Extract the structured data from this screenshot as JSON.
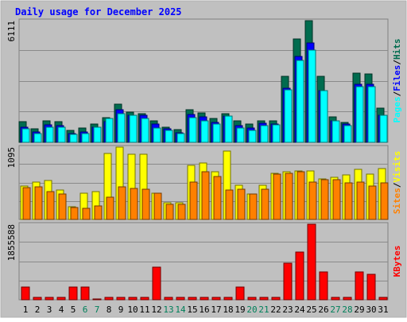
{
  "chart_data": [
    {
      "type": "bar",
      "title": "Daily usage for December 2025",
      "categories": [
        "1",
        "2",
        "3",
        "4",
        "5",
        "6",
        "7",
        "8",
        "9",
        "10",
        "11",
        "12",
        "13",
        "14",
        "15",
        "16",
        "17",
        "18",
        "19",
        "20",
        "21",
        "22",
        "23",
        "24",
        "25",
        "26",
        "27",
        "28",
        "29",
        "30",
        "31"
      ],
      "weekend_days": [
        "6",
        "7",
        "13",
        "14",
        "20",
        "21",
        "27",
        "28"
      ],
      "ylabel_parts": [
        "Pages",
        "/",
        "Files",
        "/",
        "Hits"
      ],
      "ymax_label": "6111",
      "ylim": [
        0,
        6111
      ],
      "series": [
        {
          "name": "Hits",
          "color": "#006c4f",
          "values": [
            1020,
            660,
            1060,
            1020,
            610,
            710,
            900,
            1250,
            1900,
            1520,
            1450,
            1060,
            770,
            620,
            1630,
            1490,
            1190,
            1440,
            1080,
            930,
            1070,
            1060,
            3300,
            5200,
            6111,
            3300,
            1270,
            1000,
            3490,
            3450,
            1700
          ]
        },
        {
          "name": "Files",
          "color": "#0000ff",
          "values": [
            760,
            520,
            870,
            840,
            450,
            500,
            750,
            1050,
            1630,
            1370,
            1340,
            900,
            670,
            490,
            1400,
            1270,
            1000,
            1300,
            820,
            700,
            940,
            900,
            2700,
            4300,
            5000,
            2600,
            1060,
            900,
            2900,
            2900,
            1350
          ]
        },
        {
          "name": "Pages",
          "color": "#00ffff",
          "values": [
            660,
            430,
            760,
            750,
            390,
            420,
            760,
            1180,
            1440,
            1370,
            1200,
            720,
            610,
            420,
            1240,
            1070,
            910,
            1300,
            720,
            610,
            830,
            860,
            2650,
            4100,
            4650,
            2600,
            1060,
            850,
            2800,
            2780,
            1350
          ]
        }
      ],
      "grid": true
    },
    {
      "type": "bar",
      "categories": [
        "1",
        "2",
        "3",
        "4",
        "5",
        "6",
        "7",
        "8",
        "9",
        "10",
        "11",
        "12",
        "13",
        "14",
        "15",
        "16",
        "17",
        "18",
        "19",
        "20",
        "21",
        "22",
        "23",
        "24",
        "25",
        "26",
        "27",
        "28",
        "29",
        "30",
        "31"
      ],
      "ylabel_parts": [
        "Sites",
        "/",
        "Visits"
      ],
      "ymax_label": "1095",
      "ylim": [
        0,
        1095
      ],
      "series": [
        {
          "name": "Visits",
          "color": "#ffff00",
          "values": [
            510,
            560,
            590,
            440,
            190,
            400,
            420,
            1000,
            1095,
            990,
            990,
            400,
            250,
            250,
            820,
            850,
            720,
            1030,
            520,
            380,
            520,
            700,
            720,
            740,
            730,
            610,
            640,
            670,
            760,
            690,
            770
          ]
        },
        {
          "name": "Sites",
          "color": "#ff8000",
          "values": [
            480,
            490,
            420,
            390,
            180,
            170,
            200,
            340,
            490,
            470,
            460,
            400,
            230,
            230,
            560,
            720,
            650,
            450,
            460,
            380,
            460,
            690,
            700,
            720,
            570,
            600,
            600,
            550,
            570,
            510,
            550
          ]
        }
      ],
      "grid": true
    },
    {
      "type": "bar",
      "categories": [
        "1",
        "2",
        "3",
        "4",
        "5",
        "6",
        "7",
        "8",
        "9",
        "10",
        "11",
        "12",
        "13",
        "14",
        "15",
        "16",
        "17",
        "18",
        "19",
        "20",
        "21",
        "22",
        "23",
        "24",
        "25",
        "26",
        "27",
        "28",
        "29",
        "30",
        "31"
      ],
      "ylabel_parts": [
        "KBytes"
      ],
      "ymax_label": "1855588",
      "ylim": [
        0,
        1855588
      ],
      "series": [
        {
          "name": "KBytes",
          "color": "#ff0000",
          "values": [
            310000,
            50000,
            55000,
            50000,
            320000,
            320000,
            20000,
            50000,
            50000,
            50000,
            50000,
            800000,
            50000,
            50000,
            50000,
            50000,
            50000,
            50000,
            310000,
            50000,
            50000,
            50000,
            890000,
            1180000,
            1855588,
            680000,
            50000,
            50000,
            680000,
            630000,
            50000
          ]
        }
      ],
      "grid": true
    }
  ]
}
